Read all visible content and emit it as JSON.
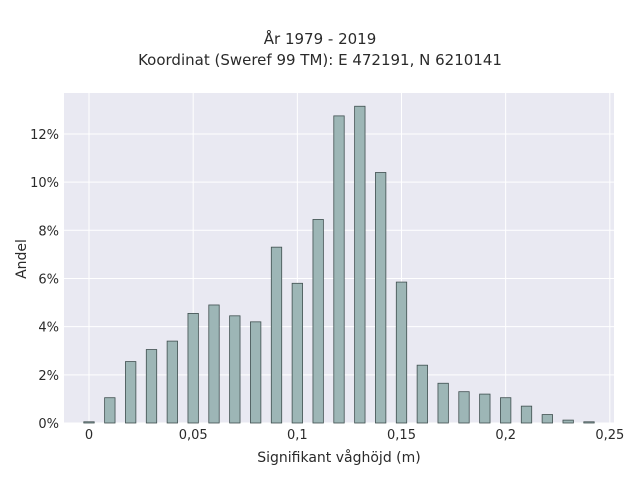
{
  "chart_data": {
    "type": "bar",
    "title_lines": [
      "År 1979 - 2019",
      "Koordinat (Sweref 99 TM): E 472191, N 6210141"
    ],
    "xlabel": "Signifikant våghöjd (m)",
    "ylabel": "Andel",
    "xlim": [
      -0.012,
      0.252
    ],
    "ylim": [
      0,
      13.7
    ],
    "x_ticks": [
      {
        "value": 0,
        "label": "0"
      },
      {
        "value": 0.05,
        "label": "0,05"
      },
      {
        "value": 0.1,
        "label": "0,1"
      },
      {
        "value": 0.15,
        "label": "0,15"
      },
      {
        "value": 0.2,
        "label": "0,2"
      },
      {
        "value": 0.25,
        "label": "0,25"
      }
    ],
    "y_ticks": [
      {
        "value": 0,
        "label": "0%"
      },
      {
        "value": 2,
        "label": "2%"
      },
      {
        "value": 4,
        "label": "4%"
      },
      {
        "value": 6,
        "label": "6%"
      },
      {
        "value": 8,
        "label": "8%"
      },
      {
        "value": 10,
        "label": "10%"
      },
      {
        "value": 12,
        "label": "12%"
      }
    ],
    "bar_width": 0.005,
    "x": [
      0,
      0.01,
      0.02,
      0.03,
      0.04,
      0.05,
      0.06,
      0.07,
      0.08,
      0.09,
      0.1,
      0.11,
      0.12,
      0.13,
      0.14,
      0.15,
      0.16,
      0.17,
      0.18,
      0.19,
      0.2,
      0.21,
      0.22,
      0.23,
      0.24
    ],
    "values": [
      0.05,
      1.05,
      2.55,
      3.05,
      3.4,
      4.55,
      4.9,
      4.45,
      4.2,
      7.3,
      5.8,
      8.45,
      12.75,
      13.15,
      10.4,
      5.85,
      2.4,
      1.65,
      1.3,
      1.2,
      1.05,
      0.7,
      0.35,
      0.12,
      0.05
    ],
    "grid": true,
    "colors": {
      "bar_fill": "#9db6b6",
      "bar_stroke": "#3f4f4f",
      "plot_bg": "#e9e9f2",
      "grid": "#ffffff"
    }
  }
}
